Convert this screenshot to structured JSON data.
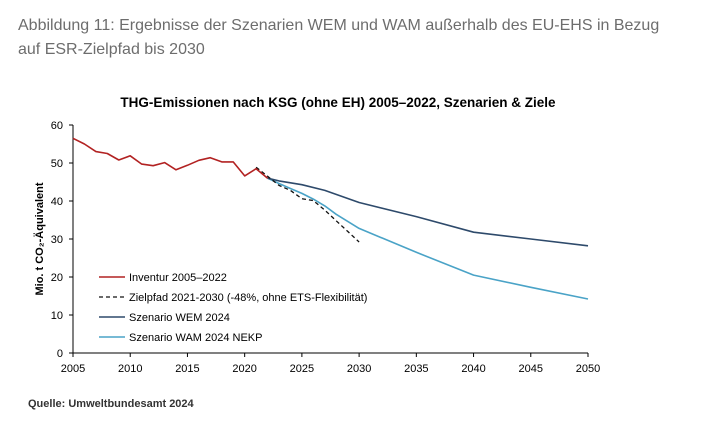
{
  "figure": {
    "caption": "Abbildung 11: Ergebnisse der Szenarien WEM und WAM außerhalb des EU-EHS in Bezug auf ESR-Zielpfad bis 2030",
    "source": "Quelle: Umweltbundesamt 2024"
  },
  "chart_data": {
    "type": "line",
    "title": "THG-Emissionen nach KSG (ohne EH) 2005–2022, Szenarien & Ziele",
    "xlabel": "",
    "ylabel": "Mio. t CO₂-Äquivalent",
    "xlim": [
      2005,
      2050
    ],
    "ylim": [
      0,
      60
    ],
    "xticks": [
      2005,
      2010,
      2015,
      2020,
      2025,
      2030,
      2035,
      2040,
      2045,
      2050
    ],
    "yticks": [
      0,
      10,
      20,
      30,
      40,
      50,
      60
    ],
    "grid": false,
    "legend_position": "lower-left",
    "series": [
      {
        "name": "Inventur 2005–2022",
        "color": "#b22222",
        "dash": "solid",
        "x": [
          2005,
          2006,
          2007,
          2008,
          2009,
          2010,
          2011,
          2012,
          2013,
          2014,
          2015,
          2016,
          2017,
          2018,
          2019,
          2020,
          2021,
          2022
        ],
        "y": [
          56.5,
          55.0,
          53.0,
          52.5,
          50.8,
          51.9,
          49.7,
          49.3,
          50.1,
          48.2,
          49.4,
          50.7,
          51.4,
          50.3,
          50.3,
          46.6,
          48.5,
          46.0
        ]
      },
      {
        "name": "Zielpfad 2021-2030 (-48%, ohne ETS-Flexibilität)",
        "color": "#111111",
        "dash": "dashed",
        "x": [
          2021,
          2022,
          2023,
          2024,
          2025,
          2026,
          2027,
          2028,
          2029,
          2030
        ],
        "y": [
          48.9,
          46.5,
          44.1,
          42.8,
          40.6,
          40.1,
          37.6,
          34.8,
          32.0,
          29.2
        ]
      },
      {
        "name": "Szenario WEM 2024",
        "color": "#2e4a6b",
        "dash": "solid",
        "x": [
          2022,
          2023,
          2025,
          2027,
          2030,
          2035,
          2040,
          2045,
          2050
        ],
        "y": [
          46.0,
          45.3,
          44.3,
          42.8,
          39.6,
          35.9,
          31.8,
          30.0,
          28.2
        ]
      },
      {
        "name": "Szenario WAM 2024 NEKP",
        "color": "#4aa3c7",
        "dash": "solid",
        "x": [
          2022,
          2023,
          2024,
          2025,
          2026,
          2027,
          2028,
          2030,
          2035,
          2040,
          2045,
          2050
        ],
        "y": [
          46.0,
          44.6,
          43.3,
          42.0,
          40.5,
          38.7,
          36.5,
          32.8,
          26.5,
          20.5,
          17.3,
          14.2
        ]
      }
    ]
  }
}
